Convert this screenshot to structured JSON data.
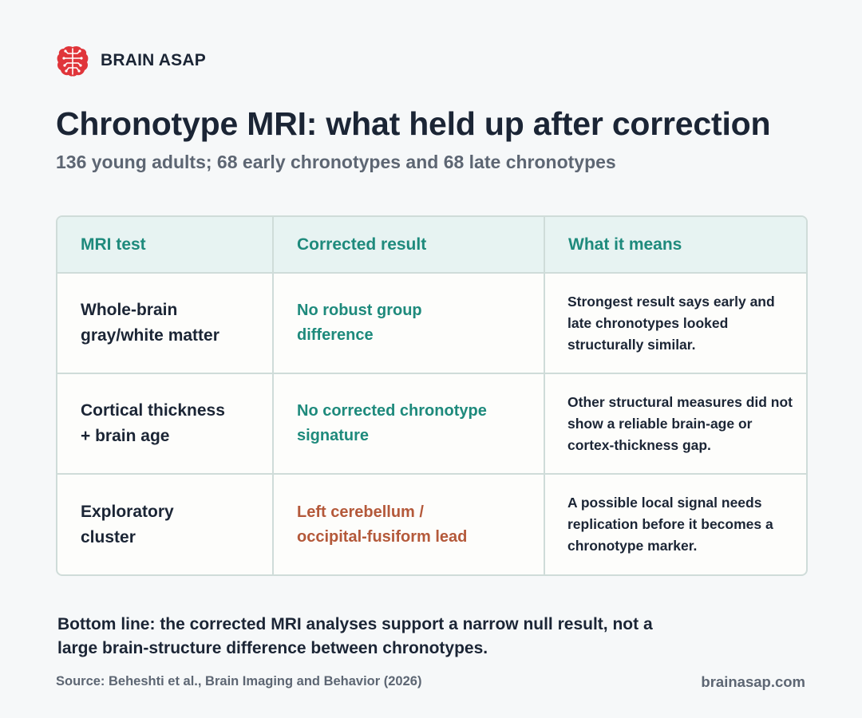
{
  "brand": {
    "name": "BRAIN ASAP",
    "logo_color": "#e0353a",
    "logo_icon": "brain-icon"
  },
  "title": "Chronotype MRI: what held up after correction",
  "subtitle": "136 young adults; 68 early chronotypes and 68 late chronotypes",
  "table": {
    "headers": [
      "MRI test",
      "Corrected result",
      "What it means"
    ],
    "rows": [
      {
        "test": [
          "Whole-brain",
          "gray/white matter"
        ],
        "result": [
          "No robust group",
          "difference"
        ],
        "result_tone": "neutral",
        "means": [
          "Strongest result says early and",
          "late chronotypes looked",
          "structurally similar."
        ]
      },
      {
        "test": [
          "Cortical thickness",
          "+ brain age"
        ],
        "result": [
          "No corrected chronotype",
          "signature"
        ],
        "result_tone": "neutral",
        "means": [
          "Other structural measures did not",
          "show a reliable brain-age or",
          "cortex-thickness gap."
        ]
      },
      {
        "test": [
          "Exploratory",
          "cluster"
        ],
        "result": [
          "Left cerebellum /",
          "occipital-fusiform lead"
        ],
        "result_tone": "lead",
        "means": [
          "A possible local signal needs",
          "replication before it becomes a",
          "chronotype marker."
        ]
      }
    ],
    "colors": {
      "header_bg": "#e7f3f2",
      "header_text": "#1e8a7c",
      "neutral_result": "#1e8a7c",
      "lead_result": "#b4593a",
      "border": "#cfdcd9"
    }
  },
  "bottom_line": [
    "Bottom line: the corrected MRI analyses support a narrow null result, not a",
    "large brain-structure difference between chronotypes."
  ],
  "footer": {
    "source": "Source: Beheshti et al., Brain Imaging and Behavior (2026)",
    "site": "brainasap.com"
  }
}
